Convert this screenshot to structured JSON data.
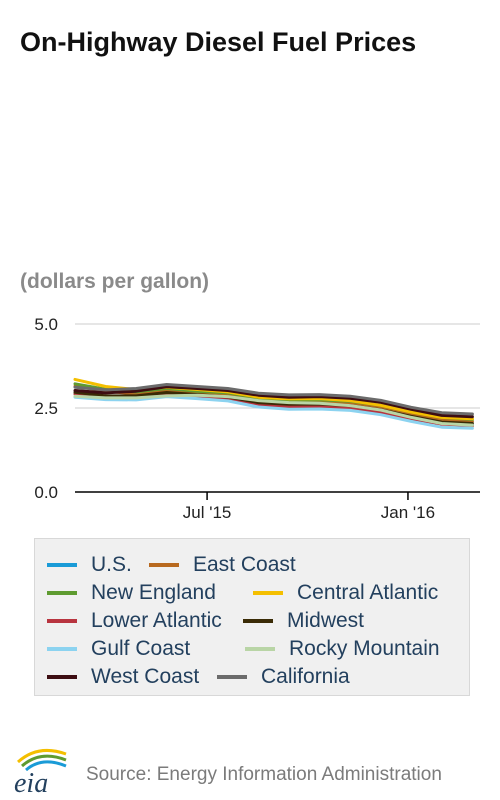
{
  "header": {
    "title": "On-Highway Diesel Fuel Prices",
    "units": "(dollars per gallon)"
  },
  "footer": {
    "logo_text": "eia",
    "source": "Source: Energy Information Administration"
  },
  "chart_data": {
    "type": "line",
    "title": "On-Highway Diesel Fuel Prices",
    "subtitle": "(dollars per gallon)",
    "xlabel": "",
    "ylabel": "",
    "x": [
      "2015-03-02",
      "2015-03-30",
      "2015-04-27",
      "2015-05-25",
      "2015-06-22",
      "2015-07-20",
      "2015-08-17",
      "2015-09-14",
      "2015-10-12",
      "2015-11-09",
      "2015-12-07",
      "2016-01-04",
      "2016-02-01",
      "2016-02-29"
    ],
    "xlim": [
      "2015-03-02",
      "2016-03-07"
    ],
    "x_ticks": [
      {
        "date": "2015-07-01",
        "label": "Jul '15"
      },
      {
        "date": "2016-01-01",
        "label": "Jan '16"
      }
    ],
    "ylim": [
      0,
      5
    ],
    "y_ticks": [
      {
        "value": 5.0,
        "label": "5.0"
      },
      {
        "value": 2.5,
        "label": "2.5"
      },
      {
        "value": 0.0,
        "label": "0.0"
      }
    ],
    "grid": true,
    "legend_position": "bottom",
    "series": [
      {
        "name": "U.S.",
        "color": "#1a9bd7",
        "values": [
          2.93,
          2.84,
          2.82,
          2.92,
          2.87,
          2.8,
          2.63,
          2.56,
          2.57,
          2.52,
          2.4,
          2.21,
          2.05,
          2.0
        ]
      },
      {
        "name": "East Coast",
        "color": "#b8691f",
        "values": [
          3.15,
          3.0,
          2.92,
          3.02,
          2.95,
          2.87,
          2.73,
          2.68,
          2.68,
          2.63,
          2.51,
          2.32,
          2.16,
          2.1
        ]
      },
      {
        "name": "New England",
        "color": "#5e9b30",
        "values": [
          3.22,
          3.06,
          2.98,
          3.08,
          3.0,
          2.95,
          2.8,
          2.74,
          2.74,
          2.7,
          2.58,
          2.38,
          2.22,
          2.16
        ]
      },
      {
        "name": "Central Atlantic",
        "color": "#f4bf00",
        "values": [
          3.35,
          3.14,
          3.05,
          3.12,
          3.05,
          2.98,
          2.82,
          2.77,
          2.78,
          2.72,
          2.58,
          2.38,
          2.22,
          2.18
        ]
      },
      {
        "name": "Lower Atlantic",
        "color": "#b8343f",
        "values": [
          2.92,
          2.82,
          2.8,
          2.9,
          2.83,
          2.77,
          2.6,
          2.54,
          2.55,
          2.5,
          2.37,
          2.18,
          2.02,
          1.97
        ]
      },
      {
        "name": "Midwest",
        "color": "#3a2b06",
        "values": [
          2.97,
          2.86,
          2.86,
          2.96,
          2.9,
          2.83,
          2.66,
          2.61,
          2.62,
          2.57,
          2.45,
          2.25,
          2.08,
          2.04
        ]
      },
      {
        "name": "Gulf Coast",
        "color": "#8cd3f0",
        "values": [
          2.82,
          2.75,
          2.74,
          2.84,
          2.78,
          2.71,
          2.53,
          2.46,
          2.47,
          2.43,
          2.3,
          2.1,
          1.93,
          1.9
        ]
      },
      {
        "name": "Rocky Mountain",
        "color": "#b9d5a6",
        "values": [
          2.85,
          2.8,
          2.8,
          2.86,
          2.88,
          2.84,
          2.72,
          2.66,
          2.64,
          2.57,
          2.44,
          2.22,
          2.04,
          1.99
        ]
      },
      {
        "name": "West Coast",
        "color": "#3d0d12",
        "values": [
          3.02,
          2.95,
          3.0,
          3.13,
          3.08,
          3.02,
          2.88,
          2.82,
          2.84,
          2.79,
          2.67,
          2.46,
          2.28,
          2.24
        ]
      },
      {
        "name": "California",
        "color": "#6b6b6b",
        "values": [
          3.12,
          3.04,
          3.08,
          3.2,
          3.14,
          3.08,
          2.94,
          2.89,
          2.9,
          2.85,
          2.73,
          2.52,
          2.36,
          2.32
        ]
      }
    ]
  }
}
